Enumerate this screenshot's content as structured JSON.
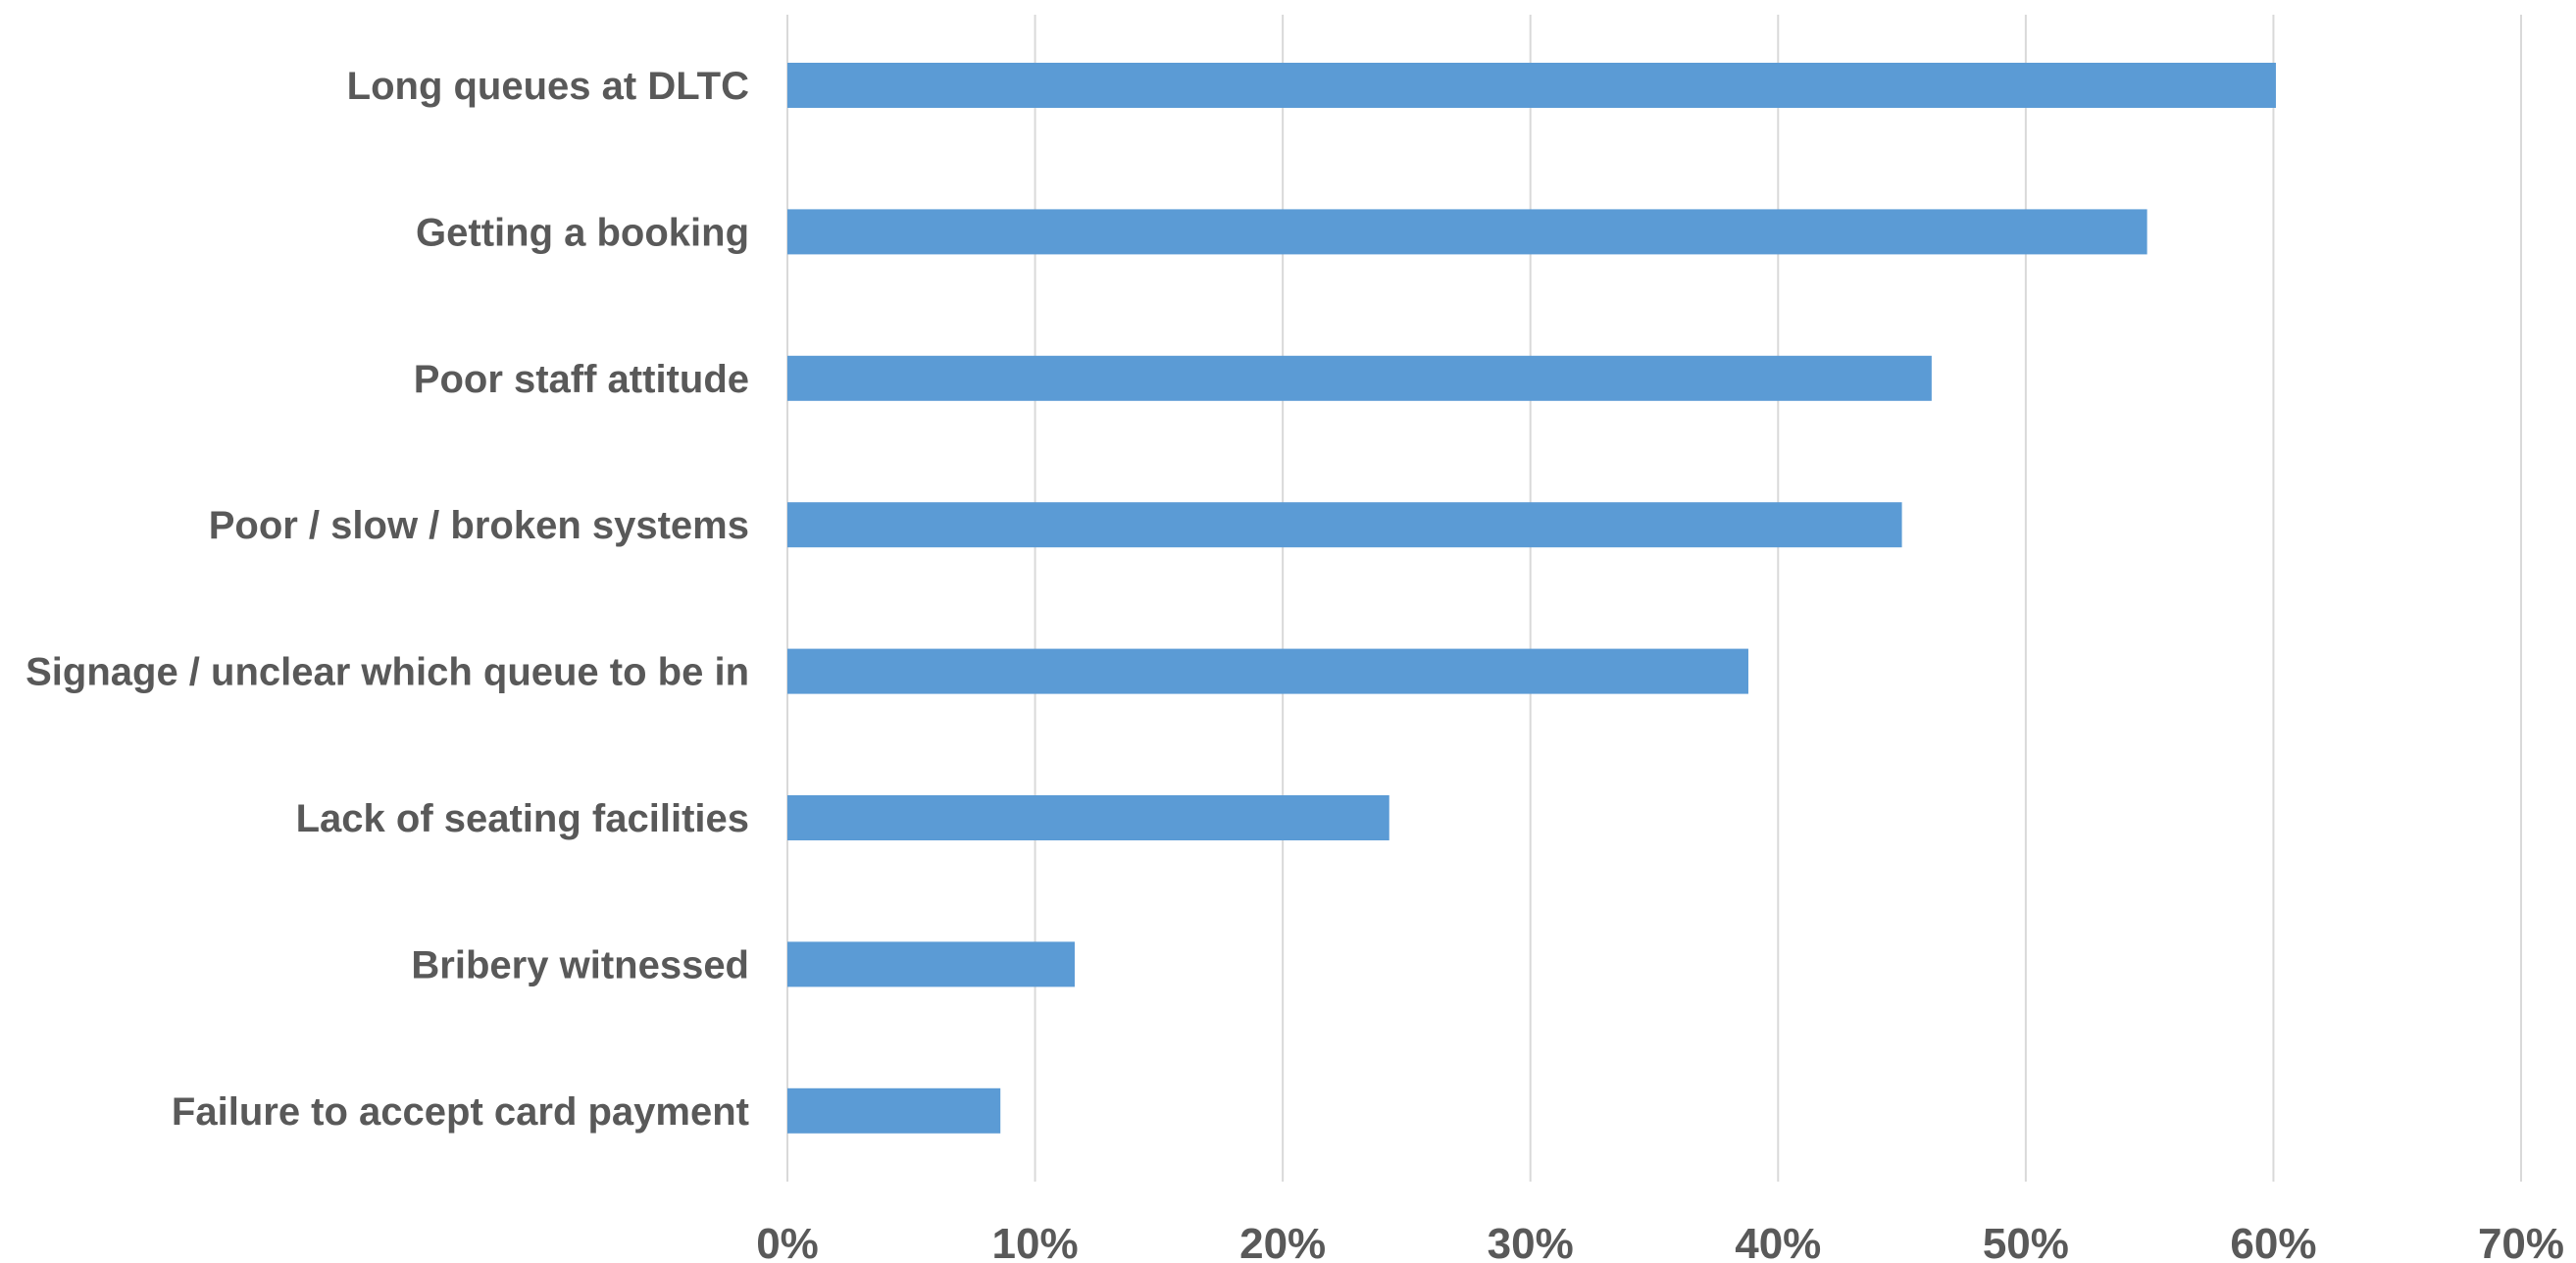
{
  "chart_data": {
    "type": "bar",
    "orientation": "horizontal",
    "categories": [
      "Long queues at DLTC",
      "Getting a booking",
      "Poor staff attitude",
      "Poor / slow / broken systems",
      "Signage / unclear which queue to be in",
      "Lack of seating facilities ",
      "Bribery witnessed",
      "Failure to accept card payment"
    ],
    "values": [
      60.1,
      54.9,
      46.2,
      45.0,
      38.8,
      24.3,
      11.6,
      8.6
    ],
    "xlim": [
      0,
      70
    ],
    "xticks": [
      0,
      10,
      20,
      30,
      40,
      50,
      60,
      70
    ],
    "xtick_labels": [
      "0%",
      "10%",
      "20%",
      "30%",
      "40%",
      "50%",
      "60%",
      "70%"
    ],
    "title": "",
    "xlabel": "",
    "ylabel": "",
    "grid": true,
    "legend": "none",
    "bar_color": "#5b9bd5"
  }
}
